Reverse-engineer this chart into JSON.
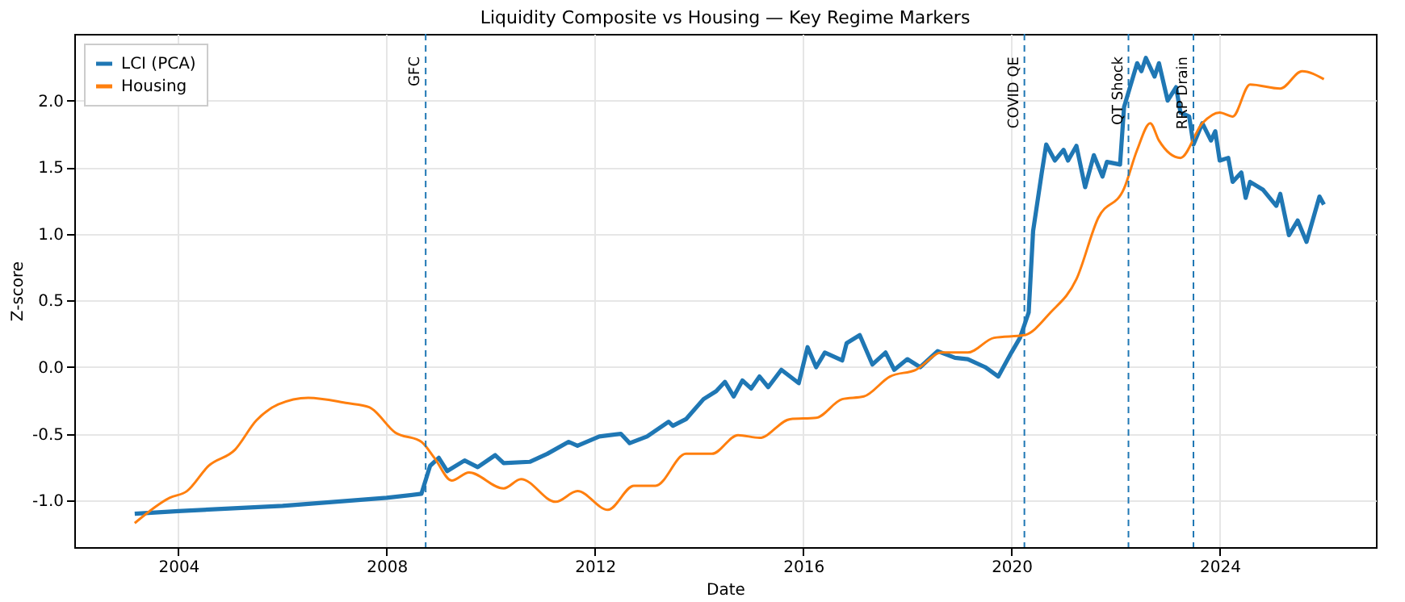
{
  "chart_data": {
    "type": "line",
    "title": "Liquidity Composite vs Housing — Key Regime Markers",
    "xlabel": "Date",
    "ylabel": "Z-score",
    "xlim": [
      "2002-01",
      "2027-01"
    ],
    "xticks": [
      "2004",
      "2008",
      "2012",
      "2016",
      "2020",
      "2024"
    ],
    "ylim": [
      -1.35,
      2.5
    ],
    "yticks": [
      {
        "value": -1,
        "label": "-1.0"
      },
      {
        "value": -0.5,
        "label": "-0.5"
      },
      {
        "value": 0,
        "label": "0.0"
      },
      {
        "value": 0.5,
        "label": "0.5"
      },
      {
        "value": 1,
        "label": "1.0"
      },
      {
        "value": 1.5,
        "label": "1.5"
      },
      {
        "value": 2,
        "label": "2.0"
      }
    ],
    "grid": true,
    "legend": "top left",
    "line_style": "solid",
    "marker": "none",
    "series": [
      {
        "name": "LCI (PCA)",
        "color": "#1f77b4",
        "x": [
          "2003-03",
          "2004-01",
          "2006-01",
          "2008-01",
          "2008-09",
          "2008-11",
          "2009-01",
          "2009-03",
          "2009-07",
          "2009-10",
          "2010-02",
          "2010-04",
          "2010-10",
          "2011-02",
          "2011-07",
          "2011-09",
          "2012-02",
          "2012-07",
          "2012-09",
          "2013-01",
          "2013-06",
          "2013-07",
          "2013-10",
          "2014-02",
          "2014-05",
          "2014-07",
          "2014-09",
          "2014-11",
          "2015-01",
          "2015-03",
          "2015-05",
          "2015-08",
          "2015-12",
          "2016-02",
          "2016-04",
          "2016-06",
          "2016-10",
          "2016-11",
          "2017-02",
          "2017-05",
          "2017-08",
          "2017-10",
          "2018-01",
          "2018-04",
          "2018-08",
          "2018-12",
          "2019-03",
          "2019-07",
          "2019-10",
          "2020-01",
          "2020-03",
          "2020-05",
          "2020-06",
          "2020-08",
          "2020-09",
          "2020-11",
          "2021-01",
          "2021-02",
          "2021-04",
          "2021-06",
          "2021-08",
          "2021-10",
          "2021-11",
          "2022-02",
          "2022-03",
          "2022-06",
          "2022-07",
          "2022-08",
          "2022-10",
          "2022-11",
          "2023-01",
          "2023-03",
          "2023-04",
          "2023-06",
          "2023-07",
          "2023-09",
          "2023-11",
          "2023-12",
          "2024-01",
          "2024-03",
          "2024-04",
          "2024-06",
          "2024-07",
          "2024-08",
          "2024-11",
          "2025-02",
          "2025-03",
          "2025-05",
          "2025-07",
          "2025-09",
          "2025-12",
          "2026-01"
        ],
        "values": [
          -1.1,
          -1.08,
          -1.04,
          -0.98,
          -0.95,
          -0.74,
          -0.68,
          -0.78,
          -0.7,
          -0.75,
          -0.66,
          -0.72,
          -0.71,
          -0.65,
          -0.56,
          -0.59,
          -0.52,
          -0.5,
          -0.57,
          -0.52,
          -0.41,
          -0.44,
          -0.39,
          -0.24,
          -0.18,
          -0.11,
          -0.22,
          -0.1,
          -0.16,
          -0.07,
          -0.15,
          -0.02,
          -0.12,
          0.15,
          0.0,
          0.11,
          0.05,
          0.18,
          0.24,
          0.02,
          0.11,
          -0.02,
          0.06,
          0.0,
          0.12,
          0.07,
          0.06,
          0.0,
          -0.07,
          0.11,
          0.22,
          0.41,
          1.02,
          1.46,
          1.67,
          1.55,
          1.63,
          1.55,
          1.66,
          1.35,
          1.59,
          1.43,
          1.54,
          1.52,
          1.95,
          2.28,
          2.22,
          2.32,
          2.18,
          2.28,
          2.0,
          2.1,
          1.91,
          1.88,
          1.67,
          1.83,
          1.7,
          1.77,
          1.55,
          1.57,
          1.39,
          1.46,
          1.27,
          1.39,
          1.33,
          1.21,
          1.3,
          0.99,
          1.1,
          0.94,
          1.28,
          1.22
        ]
      },
      {
        "name": "Housing",
        "color": "#ff7f0e",
        "x": [
          "2003-03",
          "2003-11",
          "2004-03",
          "2004-08",
          "2005-02",
          "2005-07",
          "2005-12",
          "2006-07",
          "2007-04",
          "2007-09",
          "2008-03",
          "2008-09",
          "2008-12",
          "2009-04",
          "2009-08",
          "2010-04",
          "2010-08",
          "2011-04",
          "2011-09",
          "2012-04",
          "2012-10",
          "2013-03",
          "2013-10",
          "2014-04",
          "2014-10",
          "2015-03",
          "2015-10",
          "2016-04",
          "2016-10",
          "2017-03",
          "2017-09",
          "2018-03",
          "2018-09",
          "2019-03",
          "2019-09",
          "2020-04",
          "2020-10",
          "2021-04",
          "2021-09",
          "2022-03",
          "2022-06",
          "2022-09",
          "2022-11",
          "2023-04",
          "2023-09",
          "2024-01",
          "2024-04",
          "2024-08",
          "2025-03",
          "2025-08",
          "2026-01"
        ],
        "values": [
          -1.17,
          -0.98,
          -0.93,
          -0.74,
          -0.62,
          -0.4,
          -0.28,
          -0.23,
          -0.27,
          -0.3,
          -0.49,
          -0.56,
          -0.68,
          -0.85,
          -0.79,
          -0.91,
          -0.84,
          -1.01,
          -0.93,
          -1.07,
          -0.89,
          -0.89,
          -0.65,
          -0.65,
          -0.51,
          -0.53,
          -0.39,
          -0.38,
          -0.24,
          -0.22,
          -0.07,
          -0.02,
          0.11,
          0.11,
          0.22,
          0.24,
          0.41,
          0.66,
          1.12,
          1.34,
          1.63,
          1.83,
          1.7,
          1.57,
          1.83,
          1.91,
          1.88,
          2.12,
          2.09,
          2.22,
          2.16
        ]
      }
    ],
    "ref_lines": [
      {
        "axis": "x",
        "value": "2008-10",
        "label": "GFC",
        "color": "#1f77b4",
        "line_style": "dashed"
      },
      {
        "axis": "x",
        "value": "2020-04",
        "label": "COVID QE",
        "color": "#1f77b4",
        "line_style": "dashed"
      },
      {
        "axis": "x",
        "value": "2022-04",
        "label": "QT Shock",
        "color": "#1f77b4",
        "line_style": "dashed"
      },
      {
        "axis": "x",
        "value": "2023-07",
        "label": "RRP Drain",
        "color": "#1f77b4",
        "line_style": "dashed"
      }
    ]
  }
}
